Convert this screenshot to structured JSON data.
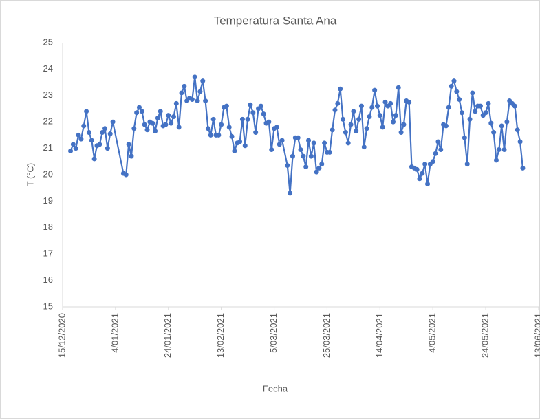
{
  "chart_data": {
    "type": "line",
    "title": "Temperatura  Santa Ana",
    "x_label": "Fecha",
    "y_label": "T (°C)",
    "xlim": [
      "2020-12-15",
      "2021-06-13"
    ],
    "xticks": [
      {
        "value": "2020-12-15",
        "label": "15/12/2020"
      },
      {
        "value": "2021-01-04",
        "label": "4/01/2021"
      },
      {
        "value": "2021-01-24",
        "label": "24/01/2021"
      },
      {
        "value": "2021-02-13",
        "label": "13/02/2021"
      },
      {
        "value": "2021-03-05",
        "label": "5/03/2021"
      },
      {
        "value": "2021-03-25",
        "label": "25/03/2021"
      },
      {
        "value": "2021-04-14",
        "label": "14/04/2021"
      },
      {
        "value": "2021-05-04",
        "label": "4/05/2021"
      },
      {
        "value": "2021-05-24",
        "label": "24/05/2021"
      },
      {
        "value": "2021-06-13",
        "label": "13/06/2021"
      }
    ],
    "ylim": [
      15,
      25
    ],
    "yticks": [
      15,
      16,
      17,
      18,
      19,
      20,
      21,
      22,
      23,
      24,
      25
    ],
    "grid": false,
    "x": [
      "2020-12-18",
      "2020-12-19",
      "2020-12-20",
      "2020-12-21",
      "2020-12-22",
      "2020-12-23",
      "2020-12-24",
      "2020-12-25",
      "2020-12-26",
      "2020-12-27",
      "2020-12-28",
      "2020-12-29",
      "2020-12-30",
      "2020-12-31",
      "2021-01-01",
      "2021-01-02",
      "2021-01-03",
      "2021-01-07",
      "2021-01-08",
      "2021-01-09",
      "2021-01-10",
      "2021-01-11",
      "2021-01-12",
      "2021-01-13",
      "2021-01-14",
      "2021-01-15",
      "2021-01-16",
      "2021-01-17",
      "2021-01-18",
      "2021-01-19",
      "2021-01-20",
      "2021-01-21",
      "2021-01-22",
      "2021-01-23",
      "2021-01-24",
      "2021-01-25",
      "2021-01-26",
      "2021-01-27",
      "2021-01-28",
      "2021-01-29",
      "2021-01-30",
      "2021-01-31",
      "2021-02-01",
      "2021-02-02",
      "2021-02-03",
      "2021-02-04",
      "2021-02-05",
      "2021-02-06",
      "2021-02-07",
      "2021-02-08",
      "2021-02-09",
      "2021-02-10",
      "2021-02-11",
      "2021-02-12",
      "2021-02-13",
      "2021-02-14",
      "2021-02-15",
      "2021-02-16",
      "2021-02-17",
      "2021-02-18",
      "2021-02-19",
      "2021-02-20",
      "2021-02-21",
      "2021-02-22",
      "2021-02-23",
      "2021-02-24",
      "2021-02-25",
      "2021-02-26",
      "2021-02-27",
      "2021-02-28",
      "2021-03-01",
      "2021-03-02",
      "2021-03-03",
      "2021-03-04",
      "2021-03-05",
      "2021-03-06",
      "2021-03-07",
      "2021-03-08",
      "2021-03-10",
      "2021-03-11",
      "2021-03-12",
      "2021-03-13",
      "2021-03-14",
      "2021-03-15",
      "2021-03-16",
      "2021-03-17",
      "2021-03-18",
      "2021-03-19",
      "2021-03-20",
      "2021-03-21",
      "2021-03-22",
      "2021-03-23",
      "2021-03-24",
      "2021-03-25",
      "2021-03-26",
      "2021-03-27",
      "2021-03-28",
      "2021-03-29",
      "2021-03-30",
      "2021-03-31",
      "2021-04-01",
      "2021-04-02",
      "2021-04-03",
      "2021-04-04",
      "2021-04-05",
      "2021-04-06",
      "2021-04-07",
      "2021-04-08",
      "2021-04-09",
      "2021-04-10",
      "2021-04-11",
      "2021-04-12",
      "2021-04-13",
      "2021-04-14",
      "2021-04-15",
      "2021-04-16",
      "2021-04-17",
      "2021-04-18",
      "2021-04-19",
      "2021-04-20",
      "2021-04-21",
      "2021-04-22",
      "2021-04-23",
      "2021-04-24",
      "2021-04-25",
      "2021-04-26",
      "2021-04-27",
      "2021-04-28",
      "2021-04-29",
      "2021-04-30",
      "2021-05-01",
      "2021-05-02",
      "2021-05-03",
      "2021-05-04",
      "2021-05-05",
      "2021-05-06",
      "2021-05-07",
      "2021-05-08",
      "2021-05-09",
      "2021-05-10",
      "2021-05-11",
      "2021-05-12",
      "2021-05-13",
      "2021-05-14",
      "2021-05-15",
      "2021-05-16",
      "2021-05-17",
      "2021-05-18",
      "2021-05-19",
      "2021-05-20",
      "2021-05-21",
      "2021-05-22",
      "2021-05-23",
      "2021-05-24",
      "2021-05-25",
      "2021-05-26",
      "2021-05-27",
      "2021-05-28",
      "2021-05-29",
      "2021-05-30",
      "2021-05-31",
      "2021-06-01",
      "2021-06-02",
      "2021-06-03",
      "2021-06-04",
      "2021-06-05",
      "2021-06-06",
      "2021-06-07"
    ],
    "series": [
      {
        "name": "T",
        "color": "#4472c4",
        "values": [
          20.9,
          21.15,
          21.0,
          21.5,
          21.35,
          21.85,
          22.4,
          21.6,
          21.3,
          20.6,
          21.1,
          21.15,
          21.6,
          21.75,
          21.0,
          21.55,
          22.0,
          20.05,
          20.0,
          21.15,
          20.7,
          21.75,
          22.35,
          22.55,
          22.4,
          21.9,
          21.7,
          22.0,
          21.95,
          21.65,
          22.15,
          22.4,
          21.85,
          21.9,
          22.25,
          21.95,
          22.2,
          22.7,
          21.8,
          23.1,
          23.35,
          22.8,
          22.9,
          22.85,
          23.7,
          22.8,
          23.15,
          23.55,
          22.8,
          21.75,
          21.5,
          22.1,
          21.5,
          21.5,
          21.9,
          22.55,
          22.6,
          21.8,
          21.45,
          20.9,
          21.2,
          21.25,
          22.1,
          21.1,
          22.1,
          22.65,
          22.35,
          21.6,
          22.5,
          22.6,
          22.3,
          21.95,
          22.0,
          20.95,
          21.75,
          21.8,
          21.15,
          21.3,
          20.35,
          19.3,
          20.7,
          21.4,
          21.4,
          20.95,
          20.7,
          20.3,
          21.3,
          20.7,
          21.2,
          20.1,
          20.25,
          20.4,
          21.2,
          20.85,
          20.85,
          21.7,
          22.45,
          22.7,
          23.25,
          22.1,
          21.6,
          21.2,
          21.9,
          22.4,
          21.65,
          22.1,
          22.6,
          21.05,
          21.75,
          22.2,
          22.55,
          23.2,
          22.6,
          22.25,
          21.8,
          22.75,
          22.6,
          22.7,
          22.0,
          22.25,
          23.3,
          21.6,
          21.9,
          22.8,
          22.75,
          20.3,
          20.25,
          20.2,
          19.85,
          20.05,
          20.4,
          19.65,
          20.4,
          20.5,
          20.8,
          21.25,
          20.95,
          21.9,
          21.85,
          22.55,
          23.35,
          23.55,
          23.15,
          22.85,
          22.35,
          21.4,
          20.4,
          22.1,
          23.1,
          22.4,
          22.6,
          22.6,
          22.25,
          22.35,
          22.7,
          21.95,
          21.6,
          20.55,
          20.95,
          21.85,
          20.95,
          22.0,
          22.8,
          22.7,
          22.6,
          21.7,
          21.25,
          20.25
        ]
      }
    ]
  }
}
